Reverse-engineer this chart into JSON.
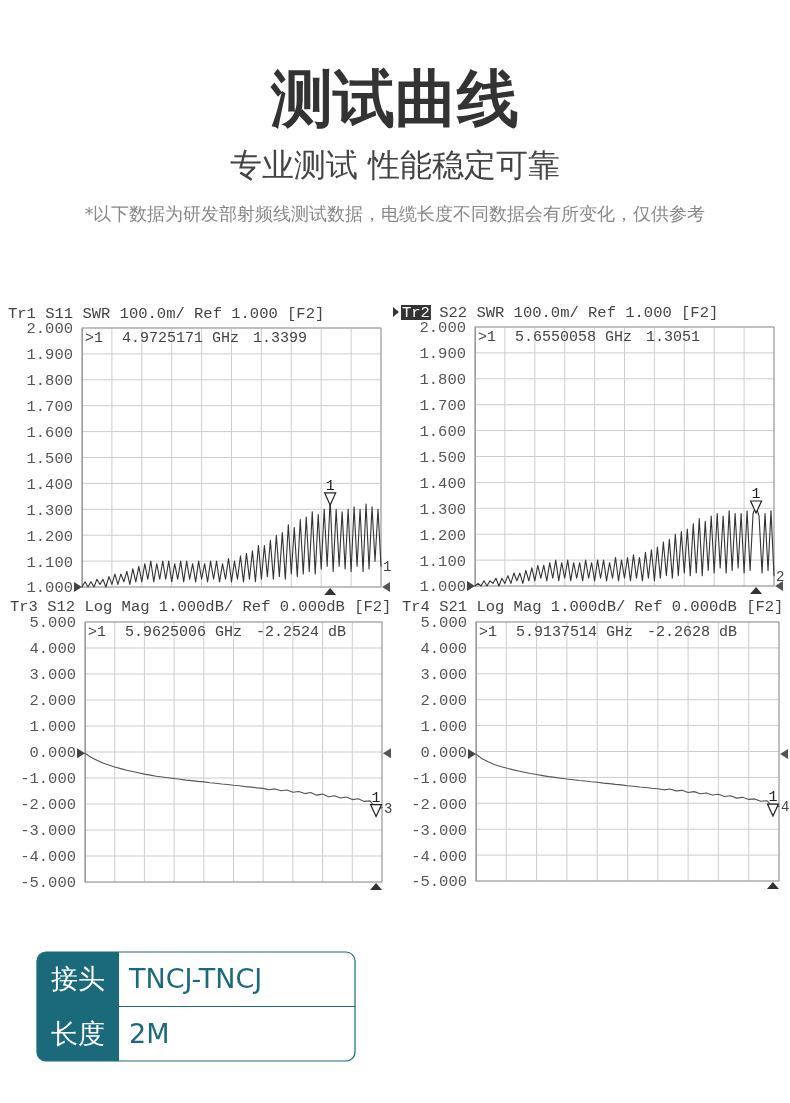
{
  "chart_data": [
    {
      "type": "other",
      "title": "测试曲线",
      "subtitle": "专业测试 性能稳定可靠",
      "annotations": [
        "*以下数据为研发部射频线测试数据，电缆长度不同数据会有所变化，仅供参考"
      ]
    },
    {
      "type": "line",
      "title": "Tr1 S11 SWR 100.0m/ Ref 1.000 [F2]",
      "annotations": [
        ">1",
        "4.9725171 GHz",
        "1.3399",
        "1"
      ],
      "categories": [
        null,
        null,
        null,
        null,
        null,
        null,
        null,
        null,
        null,
        null,
        null,
        null,
        null,
        null,
        null,
        null,
        null,
        null,
        null,
        null,
        null,
        null,
        null,
        null,
        null,
        null,
        null,
        null,
        null,
        null,
        null,
        null,
        null,
        null,
        null,
        null,
        null,
        null,
        null,
        null,
        null,
        null,
        null,
        null,
        null,
        null,
        null,
        null,
        null,
        null,
        null,
        null,
        null,
        null,
        null,
        null,
        null,
        null,
        null,
        null,
        null,
        null,
        null,
        null,
        null,
        null,
        null,
        null,
        null,
        null,
        null,
        null,
        null,
        null,
        null,
        null,
        null,
        null,
        null,
        null,
        null,
        null,
        null,
        null,
        null,
        null,
        null,
        null,
        null,
        null,
        null,
        null,
        null,
        null,
        null,
        null,
        null,
        null,
        null,
        null,
        null
      ],
      "series": [
        {
          "color": "#333333",
          "values": [
            1.0,
            1.02,
            1.0,
            1.02,
            1.0,
            1.03,
            1.01,
            1.03,
            1.0,
            1.04,
            1.01,
            1.05,
            1.01,
            1.05,
            1.02,
            1.06,
            1.01,
            1.07,
            1.02,
            1.08,
            1.02,
            1.09,
            1.03,
            1.1,
            1.02,
            1.09,
            1.03,
            1.1,
            1.03,
            1.1,
            1.02,
            1.09,
            1.03,
            1.1,
            1.02,
            1.1,
            1.03,
            1.09,
            1.02,
            1.1,
            1.03,
            1.09,
            1.02,
            1.1,
            1.03,
            1.1,
            1.02,
            1.09,
            1.03,
            1.11,
            1.02,
            1.1,
            1.03,
            1.12,
            1.02,
            1.13,
            1.03,
            1.14,
            1.02,
            1.16,
            1.03,
            1.16,
            1.04,
            1.18,
            1.03,
            1.2,
            1.04,
            1.21,
            1.03,
            1.24,
            1.05,
            1.23,
            1.04,
            1.26,
            1.05,
            1.27,
            1.06,
            1.29,
            1.05,
            1.28,
            1.07,
            1.3,
            1.08,
            1.34,
            1.06,
            1.3,
            1.08,
            1.29,
            1.07,
            1.3,
            1.06,
            1.31,
            1.08,
            1.3,
            1.06,
            1.32,
            1.07,
            1.31,
            1.1,
            1.3,
            1.08
          ]
        },
        {
          "type": "scatter",
          "name": "1",
          "marker": "triangle",
          "color": "#222222",
          "values": [
            null,
            null,
            null,
            null,
            null,
            null,
            null,
            null,
            null,
            null,
            null,
            null,
            null,
            null,
            null,
            null,
            null,
            null,
            null,
            null,
            null,
            null,
            null,
            null,
            null,
            null,
            null,
            null,
            null,
            null,
            null,
            null,
            null,
            null,
            null,
            null,
            null,
            null,
            null,
            null,
            null,
            null,
            null,
            null,
            null,
            null,
            null,
            null,
            null,
            null,
            null,
            null,
            null,
            null,
            null,
            null,
            null,
            null,
            null,
            null,
            null,
            null,
            null,
            null,
            null,
            null,
            null,
            null,
            null,
            null,
            null,
            null,
            null,
            null,
            null,
            null,
            null,
            null,
            null,
            null,
            null,
            null,
            null,
            1.3399,
            null,
            null,
            null,
            null,
            null,
            null,
            null,
            null,
            null,
            null,
            null,
            null,
            null,
            null,
            null,
            null,
            null
          ]
        }
      ],
      "ylim": [
        1,
        2
      ],
      "yticks": [
        {
          "value": 1,
          "label": "1.000"
        },
        {
          "value": 1.1,
          "label": "1.100"
        },
        {
          "value": 1.2,
          "label": "1.200"
        },
        {
          "value": 1.3,
          "label": "1.300"
        },
        {
          "value": 1.4,
          "label": "1.400"
        },
        {
          "value": 1.5,
          "label": "1.500"
        },
        {
          "value": 1.6,
          "label": "1.600"
        },
        {
          "value": 1.7,
          "label": "1.700"
        },
        {
          "value": 1.8,
          "label": "1.800"
        },
        {
          "value": 1.9,
          "label": "1.900"
        },
        {
          "value": 2,
          "label": "2.000"
        }
      ],
      "grid": true,
      "tick_labels": "y"
    },
    {
      "type": "line",
      "title": "Tr2 S22 SWR 100.0m/ Ref 1.000 [F2]",
      "annotations": [
        ">1",
        "5.6550058 GHz",
        "1.3051",
        "2"
      ],
      "categories": [
        null,
        null,
        null,
        null,
        null,
        null,
        null,
        null,
        null,
        null,
        null,
        null,
        null,
        null,
        null,
        null,
        null,
        null,
        null,
        null,
        null,
        null,
        null,
        null,
        null,
        null,
        null,
        null,
        null,
        null,
        null,
        null,
        null,
        null,
        null,
        null,
        null,
        null,
        null,
        null,
        null,
        null,
        null,
        null,
        null,
        null,
        null,
        null,
        null,
        null,
        null,
        null,
        null,
        null,
        null,
        null,
        null,
        null,
        null,
        null,
        null,
        null,
        null,
        null,
        null,
        null,
        null,
        null,
        null,
        null,
        null,
        null,
        null,
        null,
        null,
        null,
        null,
        null,
        null,
        null,
        null,
        null,
        null,
        null,
        null,
        null,
        null,
        null,
        null,
        null,
        null,
        null,
        null,
        null,
        null,
        null,
        null,
        null,
        null,
        null,
        null
      ],
      "series": [
        {
          "color": "#333333",
          "values": [
            1.0,
            1.01,
            1.0,
            1.02,
            1.0,
            1.02,
            1.01,
            1.03,
            1.0,
            1.03,
            1.01,
            1.04,
            1.01,
            1.05,
            1.02,
            1.05,
            1.01,
            1.06,
            1.02,
            1.07,
            1.02,
            1.08,
            1.03,
            1.08,
            1.02,
            1.09,
            1.03,
            1.1,
            1.02,
            1.09,
            1.03,
            1.1,
            1.02,
            1.09,
            1.03,
            1.09,
            1.02,
            1.1,
            1.03,
            1.09,
            1.02,
            1.1,
            1.03,
            1.1,
            1.02,
            1.09,
            1.03,
            1.11,
            1.02,
            1.1,
            1.03,
            1.11,
            1.02,
            1.12,
            1.03,
            1.11,
            1.02,
            1.13,
            1.03,
            1.14,
            1.02,
            1.15,
            1.03,
            1.17,
            1.04,
            1.18,
            1.03,
            1.2,
            1.04,
            1.21,
            1.05,
            1.22,
            1.04,
            1.24,
            1.05,
            1.26,
            1.04,
            1.25,
            1.06,
            1.27,
            1.05,
            1.28,
            1.07,
            1.27,
            1.05,
            1.29,
            1.06,
            1.28,
            1.07,
            1.28,
            1.05,
            1.29,
            1.06,
            1.28,
            1.31,
            1.27,
            1.05,
            1.28,
            1.06,
            1.29,
            1.04
          ]
        },
        {
          "type": "scatter",
          "name": "1",
          "marker": "triangle",
          "color": "#222222",
          "values": [
            null,
            null,
            null,
            null,
            null,
            null,
            null,
            null,
            null,
            null,
            null,
            null,
            null,
            null,
            null,
            null,
            null,
            null,
            null,
            null,
            null,
            null,
            null,
            null,
            null,
            null,
            null,
            null,
            null,
            null,
            null,
            null,
            null,
            null,
            null,
            null,
            null,
            null,
            null,
            null,
            null,
            null,
            null,
            null,
            null,
            null,
            null,
            null,
            null,
            null,
            null,
            null,
            null,
            null,
            null,
            null,
            null,
            null,
            null,
            null,
            null,
            null,
            null,
            null,
            null,
            null,
            null,
            null,
            null,
            null,
            null,
            null,
            null,
            null,
            null,
            null,
            null,
            null,
            null,
            null,
            null,
            null,
            null,
            null,
            null,
            null,
            null,
            null,
            null,
            null,
            null,
            null,
            null,
            null,
            1.3051,
            null,
            null,
            null,
            null,
            null,
            null
          ]
        }
      ],
      "ylim": [
        1,
        2
      ],
      "yticks": [
        {
          "value": 1,
          "label": "1.000"
        },
        {
          "value": 1.1,
          "label": "1.100"
        },
        {
          "value": 1.2,
          "label": "1.200"
        },
        {
          "value": 1.3,
          "label": "1.300"
        },
        {
          "value": 1.4,
          "label": "1.400"
        },
        {
          "value": 1.5,
          "label": "1.500"
        },
        {
          "value": 1.6,
          "label": "1.600"
        },
        {
          "value": 1.7,
          "label": "1.700"
        },
        {
          "value": 1.8,
          "label": "1.800"
        },
        {
          "value": 1.9,
          "label": "1.900"
        },
        {
          "value": 2,
          "label": "2.000"
        }
      ],
      "grid": true,
      "tick_labels": "y"
    },
    {
      "type": "line",
      "title": "Tr3 S12 Log Mag 1.000dB/ Ref 0.000dB [F2]",
      "annotations": [
        ">1",
        "5.9625006 GHz",
        "-2.2524 dB",
        "3"
      ],
      "categories": [
        null,
        null,
        null,
        null,
        null,
        null,
        null,
        null,
        null,
        null,
        null,
        null,
        null,
        null,
        null,
        null,
        null,
        null,
        null,
        null,
        null,
        null,
        null,
        null,
        null,
        null,
        null,
        null,
        null,
        null,
        null,
        null,
        null,
        null,
        null,
        null,
        null,
        null,
        null,
        null,
        null,
        null,
        null,
        null,
        null,
        null,
        null,
        null,
        null,
        null,
        null
      ],
      "series": [
        {
          "color": "#555555",
          "values": [
            -0.05,
            -0.2,
            -0.32,
            -0.42,
            -0.5,
            -0.58,
            -0.64,
            -0.7,
            -0.75,
            -0.8,
            -0.85,
            -0.89,
            -0.93,
            -0.96,
            -0.99,
            -1.02,
            -1.05,
            -1.08,
            -1.1,
            -1.13,
            -1.15,
            -1.18,
            -1.2,
            -1.23,
            -1.25,
            -1.28,
            -1.3,
            -1.33,
            -1.35,
            -1.38,
            -1.4,
            -1.45,
            -1.42,
            -1.49,
            -1.46,
            -1.55,
            -1.52,
            -1.6,
            -1.56,
            -1.66,
            -1.62,
            -1.72,
            -1.68,
            -1.77,
            -1.73,
            -1.83,
            -1.8,
            -1.9,
            -1.88,
            -2.18,
            -2.14
          ]
        },
        {
          "type": "scatter",
          "name": "1",
          "marker": "triangle",
          "color": "#222222",
          "values": [
            null,
            null,
            null,
            null,
            null,
            null,
            null,
            null,
            null,
            null,
            null,
            null,
            null,
            null,
            null,
            null,
            null,
            null,
            null,
            null,
            null,
            null,
            null,
            null,
            null,
            null,
            null,
            null,
            null,
            null,
            null,
            null,
            null,
            null,
            null,
            null,
            null,
            null,
            null,
            null,
            null,
            null,
            null,
            null,
            null,
            null,
            null,
            null,
            null,
            -2.2524,
            null
          ]
        }
      ],
      "ylim": [
        -5,
        5
      ],
      "yticks": [
        {
          "value": -5,
          "label": "-5.000"
        },
        {
          "value": -4,
          "label": "-4.000"
        },
        {
          "value": -3,
          "label": "-3.000"
        },
        {
          "value": -2,
          "label": "-2.000"
        },
        {
          "value": -1,
          "label": "-1.000"
        },
        {
          "value": 0,
          "label": "0.000"
        },
        {
          "value": 1,
          "label": "1.000"
        },
        {
          "value": 2,
          "label": "2.000"
        },
        {
          "value": 3,
          "label": "3.000"
        },
        {
          "value": 4,
          "label": "4.000"
        },
        {
          "value": 5,
          "label": "5.000"
        }
      ],
      "grid": true,
      "tick_labels": "y"
    },
    {
      "type": "line",
      "title": "Tr4 S21 Log Mag 1.000dB/ Ref 0.000dB [F2]",
      "annotations": [
        ">1",
        "5.9137514 GHz",
        "-2.2628 dB",
        "4"
      ],
      "categories": [
        null,
        null,
        null,
        null,
        null,
        null,
        null,
        null,
        null,
        null,
        null,
        null,
        null,
        null,
        null,
        null,
        null,
        null,
        null,
        null,
        null,
        null,
        null,
        null,
        null,
        null,
        null,
        null,
        null,
        null,
        null,
        null,
        null,
        null,
        null,
        null,
        null,
        null,
        null,
        null,
        null,
        null,
        null,
        null,
        null,
        null,
        null,
        null,
        null,
        null,
        null
      ],
      "series": [
        {
          "color": "#555555",
          "values": [
            -0.1,
            -0.28,
            -0.4,
            -0.5,
            -0.58,
            -0.64,
            -0.7,
            -0.75,
            -0.8,
            -0.85,
            -0.89,
            -0.93,
            -0.97,
            -1.0,
            -1.03,
            -1.06,
            -1.09,
            -1.12,
            -1.14,
            -1.17,
            -1.19,
            -1.22,
            -1.24,
            -1.27,
            -1.29,
            -1.32,
            -1.34,
            -1.37,
            -1.39,
            -1.42,
            -1.44,
            -1.48,
            -1.45,
            -1.52,
            -1.5,
            -1.58,
            -1.55,
            -1.63,
            -1.6,
            -1.68,
            -1.65,
            -1.74,
            -1.71,
            -1.8,
            -1.77,
            -1.85,
            -1.83,
            -1.92,
            -1.9,
            -2.15,
            -2.12
          ]
        },
        {
          "type": "scatter",
          "name": "1",
          "marker": "triangle",
          "color": "#222222",
          "values": [
            null,
            null,
            null,
            null,
            null,
            null,
            null,
            null,
            null,
            null,
            null,
            null,
            null,
            null,
            null,
            null,
            null,
            null,
            null,
            null,
            null,
            null,
            null,
            null,
            null,
            null,
            null,
            null,
            null,
            null,
            null,
            null,
            null,
            null,
            null,
            null,
            null,
            null,
            null,
            null,
            null,
            null,
            null,
            null,
            null,
            null,
            null,
            null,
            null,
            -2.2628,
            null
          ]
        }
      ],
      "ylim": [
        -5,
        5
      ],
      "yticks": [
        {
          "value": -5,
          "label": "-5.000"
        },
        {
          "value": -4,
          "label": "-4.000"
        },
        {
          "value": -3,
          "label": "-3.000"
        },
        {
          "value": -2,
          "label": "-2.000"
        },
        {
          "value": -1,
          "label": "-1.000"
        },
        {
          "value": 0,
          "label": "0.000"
        },
        {
          "value": 1,
          "label": "1.000"
        },
        {
          "value": 2,
          "label": "2.000"
        },
        {
          "value": 3,
          "label": "3.000"
        },
        {
          "value": 4,
          "label": "4.000"
        },
        {
          "value": 5,
          "label": "5.000"
        }
      ],
      "grid": true,
      "tick_labels": "y"
    },
    {
      "type": "other",
      "annotations": [
        "接头",
        "TNCJ-TNCJ",
        "长度",
        "2M"
      ]
    }
  ]
}
